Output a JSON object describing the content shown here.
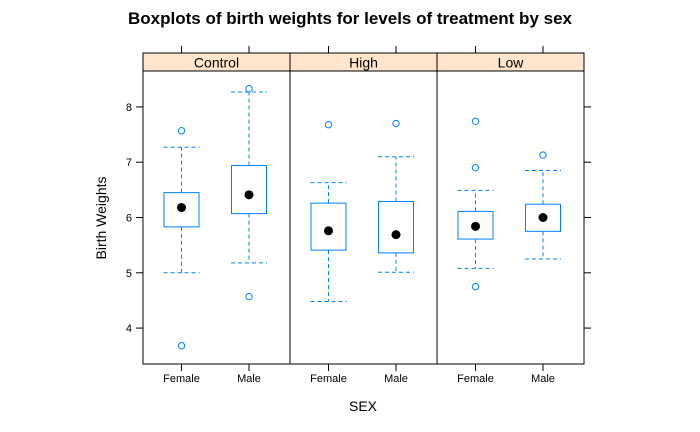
{
  "chart_data": {
    "type": "boxplot",
    "title": "Boxplots of birth weights for levels of treatment by sex",
    "xlabel": "SEX",
    "ylabel": "Birth Weights",
    "categories": [
      "Female",
      "Male"
    ],
    "panels": [
      "Control",
      "High",
      "Low"
    ],
    "yticks": [
      4,
      5,
      6,
      7,
      8
    ],
    "ylim": [
      3.35,
      8.65
    ],
    "colors": {
      "strip": "#ffe5cc",
      "box": "#0080ff",
      "median": "#000000",
      "frame": "#000000"
    },
    "series": [
      {
        "panel": "Control",
        "boxes": [
          {
            "category": "Female",
            "whisker_low": 5.0,
            "q1": 5.83,
            "median": 6.18,
            "q3": 6.45,
            "whisker_high": 7.27,
            "outliers": [
              7.57,
              3.68
            ]
          },
          {
            "category": "Male",
            "whisker_low": 5.18,
            "q1": 6.07,
            "median": 6.41,
            "q3": 6.94,
            "whisker_high": 8.27,
            "outliers": [
              8.33,
              4.57
            ]
          }
        ]
      },
      {
        "panel": "High",
        "boxes": [
          {
            "category": "Female",
            "whisker_low": 4.48,
            "q1": 5.41,
            "median": 5.76,
            "q3": 6.26,
            "whisker_high": 6.63,
            "outliers": [
              7.68
            ]
          },
          {
            "category": "Male",
            "whisker_low": 5.01,
            "q1": 5.36,
            "median": 5.69,
            "q3": 6.29,
            "whisker_high": 7.1,
            "outliers": [
              7.7
            ]
          }
        ]
      },
      {
        "panel": "Low",
        "boxes": [
          {
            "category": "Female",
            "whisker_low": 5.08,
            "q1": 5.61,
            "median": 5.84,
            "q3": 6.11,
            "whisker_high": 6.49,
            "outliers": [
              7.74,
              6.9,
              4.75
            ]
          },
          {
            "category": "Male",
            "whisker_low": 5.25,
            "q1": 5.75,
            "median": 6.0,
            "q3": 6.24,
            "whisker_high": 6.85,
            "outliers": [
              7.13
            ]
          }
        ]
      }
    ]
  }
}
